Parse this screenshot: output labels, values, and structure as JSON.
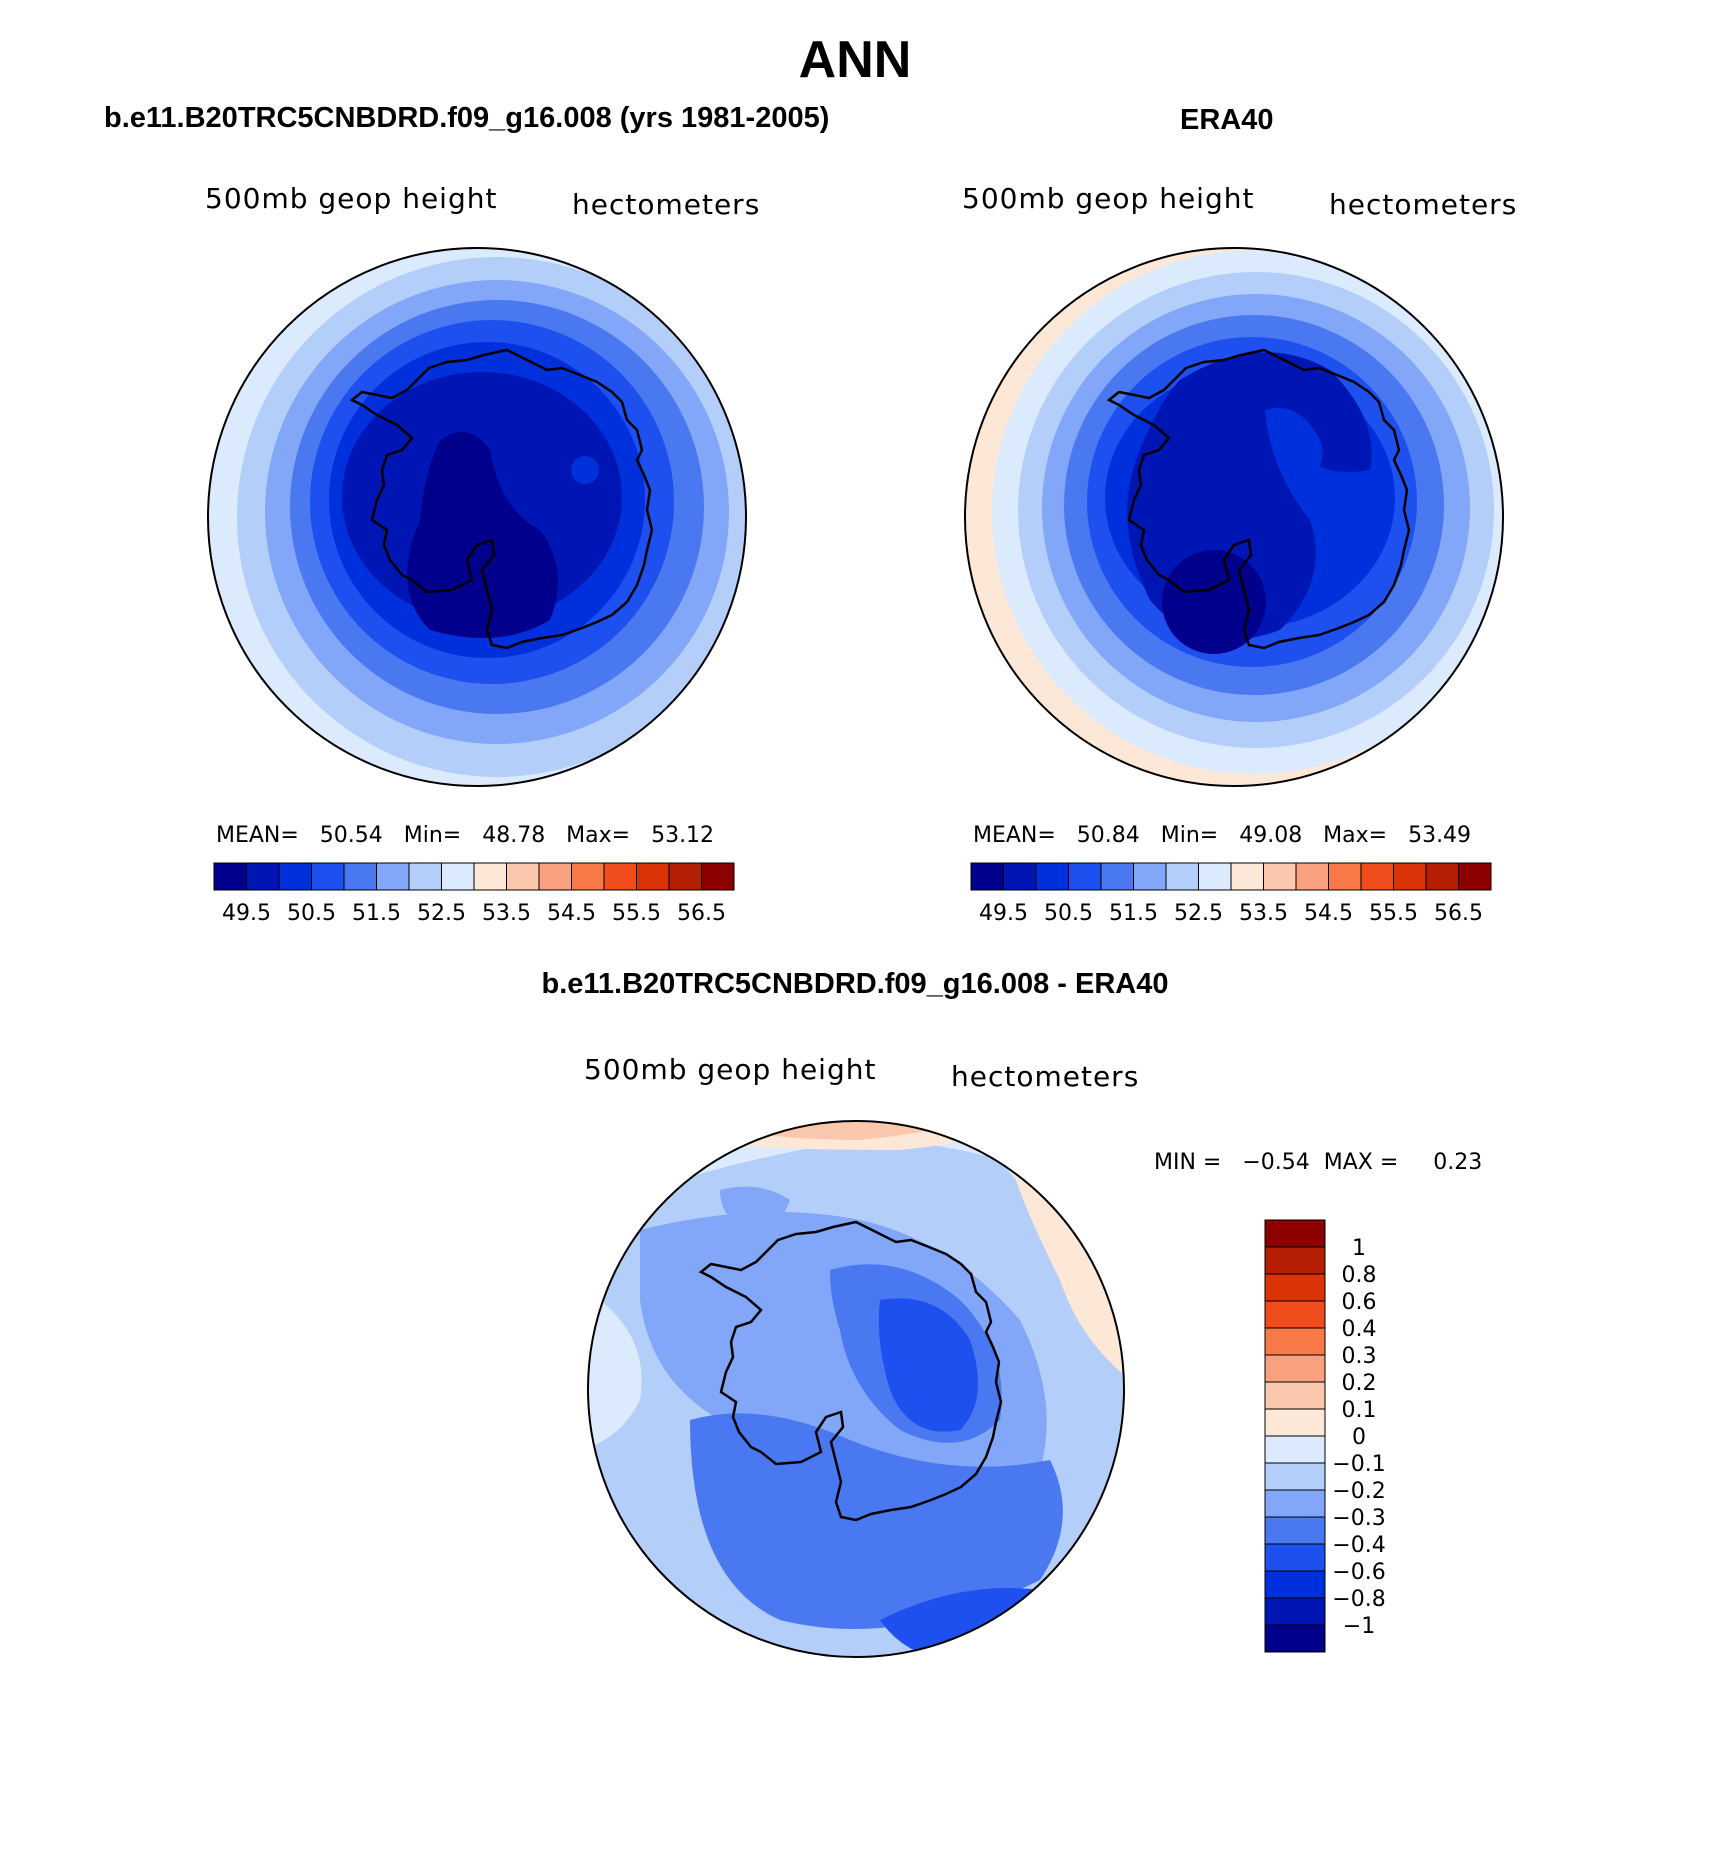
{
  "main_title": "ANN",
  "panels": [
    {
      "title": "b.e11.B20TRC5CNBDRD.f09_g16.008 (yrs 1981-2005)",
      "field_label": "500mb geop height",
      "units_label": "hectometers",
      "stats_text": "MEAN=   50.54   Min=   48.78   Max=   53.12"
    },
    {
      "title": "ERA40",
      "field_label": "500mb geop height",
      "units_label": "hectometers",
      "stats_text": "MEAN=   50.84   Min=   49.08   Max=   53.49"
    }
  ],
  "diff_panel": {
    "title": "b.e11.B20TRC5CNBDRD.f09_g16.008 - ERA40",
    "field_label": "500mb geop height",
    "units_label": "hectometers",
    "stats_text": "MIN =   −0.54  MAX =     0.23"
  },
  "abs_colorbar": {
    "colors": [
      "#00008c",
      "#0016b4",
      "#0030dc",
      "#1e50f0",
      "#4a78f0",
      "#82a6f8",
      "#b4cefa",
      "#dceafe",
      "#fde8d8",
      "#fbc8ae",
      "#f9a07e",
      "#f87848",
      "#f04c1c",
      "#dc3208",
      "#b41e02",
      "#8c0000"
    ],
    "tick_labels": [
      "49.5",
      "50.5",
      "51.5",
      "52.5",
      "53.5",
      "54.5",
      "55.5",
      "56.5"
    ]
  },
  "diff_colorbar": {
    "colors": [
      "#00008c",
      "#0016b4",
      "#0030dc",
      "#1e50f0",
      "#4a78f0",
      "#82a6f8",
      "#b4cefa",
      "#dceafe",
      "#fde8d8",
      "#fbc8ae",
      "#f9a07e",
      "#f87848",
      "#f04c1c",
      "#dc3208",
      "#b41e02",
      "#8c0000"
    ],
    "tick_labels": [
      "1",
      "0.8",
      "0.6",
      "0.4",
      "0.3",
      "0.2",
      "0.1",
      "0",
      "−0.1",
      "−0.2",
      "−0.3",
      "−0.4",
      "−0.6",
      "−0.8",
      "−1"
    ]
  }
}
